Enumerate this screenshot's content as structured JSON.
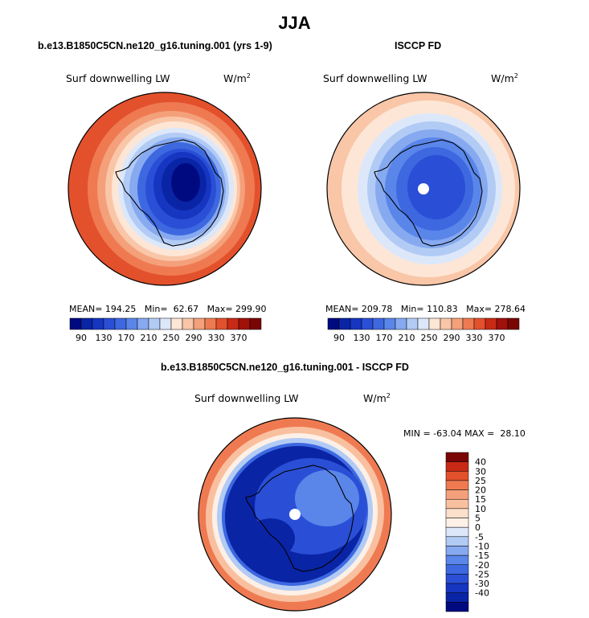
{
  "title": "JJA",
  "panels": [
    {
      "header": "b.e13.B1850C5CN.ne120_g16.tuning.001 (yrs 1-9)",
      "field_label": "Surf downwelling LW",
      "units": "W/m",
      "units_exp": "2",
      "stats": "MEAN= 194.25   Min=  62.67   Max= 299.90"
    },
    {
      "header": "ISCCP FD",
      "field_label": "Surf downwelling LW",
      "units": "W/m",
      "units_exp": "2",
      "stats": "MEAN= 209.78   Min= 110.83   Max= 278.64"
    },
    {
      "header": "b.e13.B1850C5CN.ne120_g16.tuning.001 - ISCCP FD",
      "field_label": "Surf downwelling LW",
      "units": "W/m",
      "units_exp": "2",
      "stats": "MIN = -63.04 MAX =  28.10"
    }
  ],
  "colorbars": {
    "absolute": {
      "colors": [
        "#000a80",
        "#0a24a6",
        "#1636c2",
        "#2a4fd6",
        "#3d68e0",
        "#5a86ea",
        "#86a9f0",
        "#b2cbf5",
        "#dce8fa",
        "#fde6d6",
        "#f9c6a8",
        "#f4a07a",
        "#ef7a52",
        "#e3512c",
        "#c92a15",
        "#a0110a",
        "#7a0505"
      ],
      "labels": [
        "90",
        "130",
        "170",
        "210",
        "250",
        "290",
        "330",
        "370"
      ]
    },
    "difference": {
      "colors": [
        "#000a80",
        "#0a24a6",
        "#1636c2",
        "#2a4fd6",
        "#3d68e0",
        "#5a86ea",
        "#86a9f0",
        "#b2cbf5",
        "#dce8fa",
        "#fdf0e6",
        "#fde0cc",
        "#f9c0a0",
        "#f4a07a",
        "#ef7a52",
        "#e3512c",
        "#c92a15",
        "#7a0505"
      ],
      "labels": [
        "40",
        "30",
        "25",
        "20",
        "15",
        "10",
        "5",
        "0",
        "-5",
        "-10",
        "-15",
        "-20",
        "-25",
        "-30",
        "-40"
      ]
    }
  },
  "chart_data": [
    {
      "type": "heatmap",
      "title": "b.e13.B1850C5CN.ne120_g16.tuning.001 (yrs 1-9)",
      "variable": "Surf downwelling LW",
      "units": "W/m2",
      "projection": "south-polar-stereographic",
      "mean": 194.25,
      "min": 62.67,
      "max": 299.9,
      "contour_levels": [
        90,
        110,
        130,
        150,
        170,
        190,
        210,
        230,
        250,
        270,
        290,
        310,
        330,
        350,
        370
      ],
      "colorbar_labels": [
        90,
        130,
        170,
        210,
        250,
        290,
        330,
        370
      ]
    },
    {
      "type": "heatmap",
      "title": "ISCCP FD",
      "variable": "Surf downwelling LW",
      "units": "W/m2",
      "projection": "south-polar-stereographic",
      "mean": 209.78,
      "min": 110.83,
      "max": 278.64,
      "contour_levels": [
        90,
        110,
        130,
        150,
        170,
        190,
        210,
        230,
        250,
        270,
        290,
        310,
        330,
        350,
        370
      ],
      "colorbar_labels": [
        90,
        130,
        170,
        210,
        250,
        290,
        330,
        370
      ]
    },
    {
      "type": "heatmap",
      "title": "b.e13.B1850C5CN.ne120_g16.tuning.001 - ISCCP FD",
      "variable": "Surf downwelling LW",
      "units": "W/m2",
      "projection": "south-polar-stereographic",
      "min": -63.04,
      "max": 28.1,
      "contour_levels": [
        -40,
        -30,
        -25,
        -20,
        -15,
        -10,
        -5,
        0,
        5,
        10,
        15,
        20,
        25,
        30,
        40
      ],
      "colorbar_labels": [
        40,
        30,
        25,
        20,
        15,
        10,
        5,
        0,
        -5,
        -10,
        -15,
        -20,
        -25,
        -30,
        -40
      ]
    }
  ]
}
